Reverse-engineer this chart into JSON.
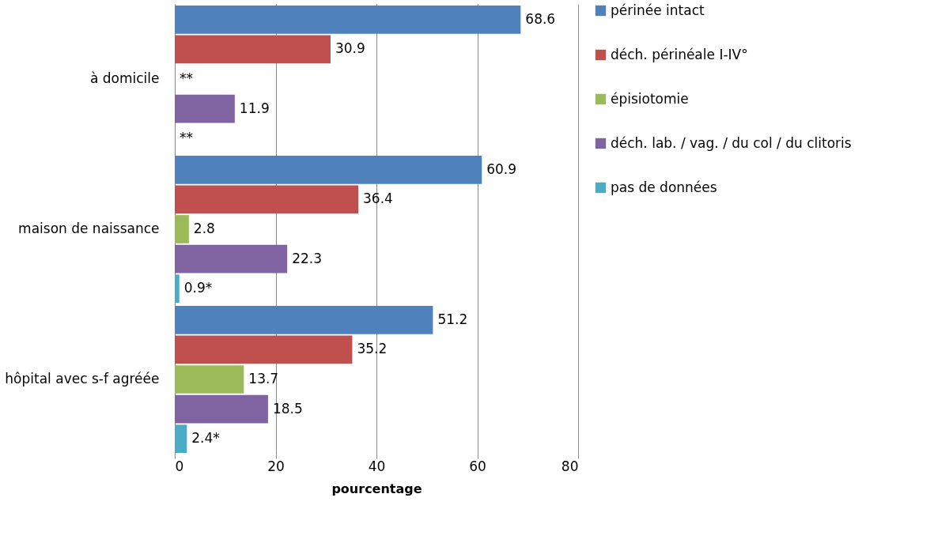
{
  "chart_data": {
    "type": "bar",
    "orientation": "horizontal",
    "xlabel": "pourcentage",
    "categories": [
      "à domicile",
      "maison de naissance",
      "hôpital avec s-f agréée"
    ],
    "series": [
      {
        "name": "périnée intact",
        "color": "#4f81bd",
        "values": [
          68.6,
          60.9,
          51.2
        ]
      },
      {
        "name": "déch. périnéale I-IV°",
        "color": "#c0504d",
        "values": [
          30.9,
          36.4,
          35.2
        ]
      },
      {
        "name": "épisiotomie",
        "color": "#9bbb59",
        "values": [
          null,
          2.8,
          13.7
        ],
        "value_labels": [
          "**",
          "2.8",
          "13.7"
        ]
      },
      {
        "name": "déch. lab. / vag. / du col / du clitoris",
        "color": "#8064a2",
        "values": [
          11.9,
          22.3,
          18.5
        ]
      },
      {
        "name": "pas de données",
        "color": "#4bacc6",
        "values": [
          null,
          0.9,
          2.4
        ],
        "value_labels": [
          "**",
          "0.9*",
          "2.4*"
        ]
      }
    ],
    "xlim": [
      0,
      80
    ],
    "xticks": [
      0,
      20,
      40,
      60,
      80
    ],
    "grid": "x",
    "legend": "right",
    "data_labels": true
  }
}
